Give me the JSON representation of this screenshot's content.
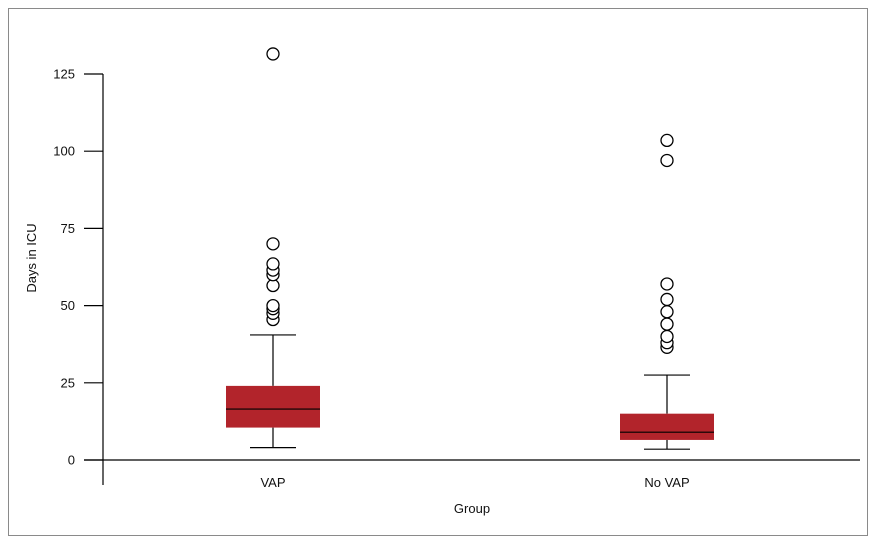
{
  "chart_data": {
    "type": "box",
    "xlabel": "Group",
    "ylabel": "Days in ICU",
    "ylim": [
      0,
      132
    ],
    "yticks": [
      0,
      25,
      50,
      75,
      100,
      125
    ],
    "categories": [
      "VAP",
      "No VAP"
    ],
    "boxes": [
      {
        "name": "VAP",
        "whisker_low": 4,
        "q1": 10.5,
        "median": 16.5,
        "q3": 24,
        "whisker_high": 40.5,
        "outliers": [
          45.5,
          47.5,
          49,
          50,
          56.5,
          60,
          61.5,
          63.5,
          70,
          131.5
        ]
      },
      {
        "name": "No VAP",
        "whisker_low": 3.5,
        "q1": 6.5,
        "median": 9,
        "q3": 15,
        "whisker_high": 27.5,
        "outliers": [
          36.5,
          38,
          40,
          44,
          48,
          52,
          57,
          97,
          103.5
        ]
      }
    ],
    "colors": {
      "box_fill": "#b2242b",
      "line": "#000000"
    },
    "grid": false,
    "legend": "none"
  }
}
